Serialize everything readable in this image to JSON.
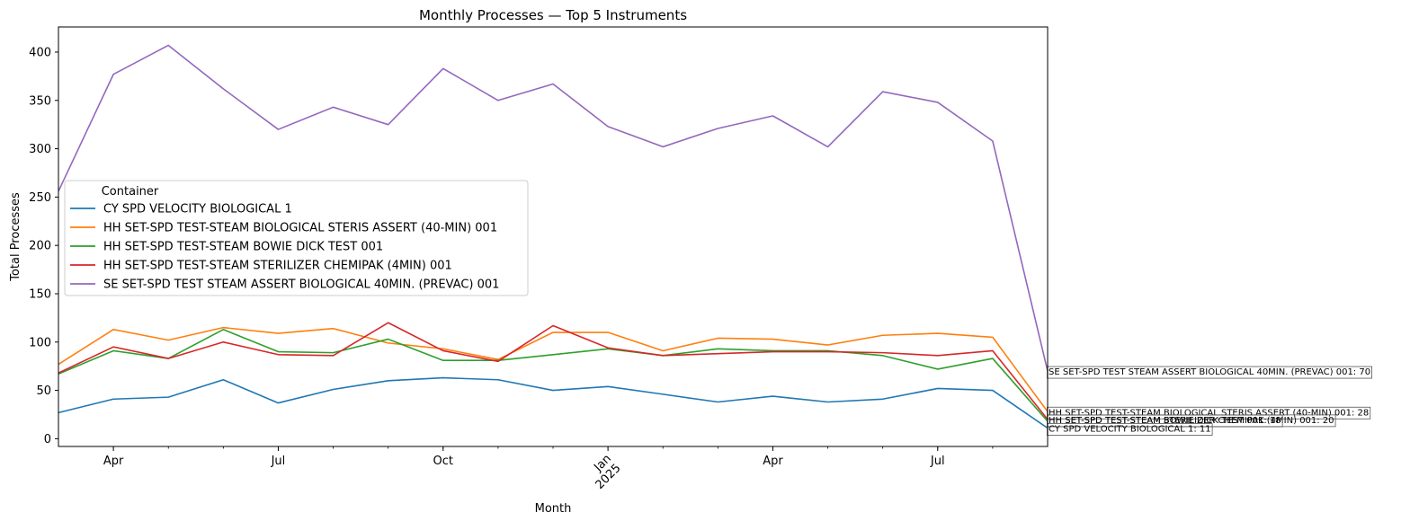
{
  "chart_data": {
    "type": "line",
    "title": "Monthly Processes — Top 5 Instruments",
    "xlabel": "Month",
    "ylabel": "Total Processes",
    "x": [
      "2024-03",
      "2024-04",
      "2024-05",
      "2024-06",
      "2024-07",
      "2024-08",
      "2024-09",
      "2024-10",
      "2024-11",
      "2024-12",
      "2025-01",
      "2025-02",
      "2025-03",
      "2025-04",
      "2025-05",
      "2025-06",
      "2025-07",
      "2025-08",
      "2025-09"
    ],
    "xlim": [
      "2024-03",
      "2025-09"
    ],
    "ylim": [
      -8,
      426
    ],
    "yticks": [
      0,
      50,
      100,
      150,
      200,
      250,
      300,
      350,
      400
    ],
    "xticks": [
      {
        "month": "2024-04",
        "label": "Apr"
      },
      {
        "month": "2024-07",
        "label": "Jul"
      },
      {
        "month": "2024-10",
        "label": "Oct"
      },
      {
        "month": "2025-01",
        "label": "Jan\n2025"
      },
      {
        "month": "2025-04",
        "label": "Apr"
      },
      {
        "month": "2025-07",
        "label": "Jul"
      }
    ],
    "legend": {
      "title": "Container",
      "position": "center-left"
    },
    "grid": false,
    "series": [
      {
        "name": "CY SPD VELOCITY BIOLOGICAL 1",
        "color": "#1f77b4",
        "values": [
          27,
          41,
          43,
          61,
          37,
          51,
          60,
          63,
          61,
          50,
          54,
          46,
          38,
          44,
          38,
          41,
          52,
          50,
          11
        ]
      },
      {
        "name": "HH SET-SPD TEST-STEAM BIOLOGICAL STERIS ASSERT (40-MIN) 001",
        "color": "#ff7f0e",
        "values": [
          77,
          113,
          102,
          115,
          109,
          114,
          99,
          93,
          82,
          110,
          110,
          91,
          104,
          103,
          97,
          107,
          109,
          105,
          28
        ]
      },
      {
        "name": "HH SET-SPD TEST-STEAM BOWIE DICK TEST 001",
        "color": "#2ca02c",
        "values": [
          67,
          91,
          83,
          113,
          90,
          89,
          103,
          81,
          81,
          87,
          93,
          86,
          93,
          91,
          91,
          86,
          72,
          83,
          18
        ]
      },
      {
        "name": "HH SET-SPD TEST-STEAM STERILIZER CHEMIPAK (4MIN) 001",
        "color": "#d62728",
        "values": [
          68,
          95,
          83,
          100,
          87,
          86,
          120,
          91,
          80,
          117,
          94,
          86,
          88,
          90,
          90,
          89,
          86,
          91,
          20
        ]
      },
      {
        "name": "SE SET-SPD TEST STEAM ASSERT BIOLOGICAL 40MIN. (PREVAC) 001",
        "color": "#9467bd",
        "values": [
          256,
          377,
          407,
          362,
          320,
          343,
          325,
          383,
          350,
          367,
          323,
          302,
          321,
          334,
          302,
          359,
          348,
          308,
          70
        ]
      }
    ],
    "annotations": [
      {
        "text": "SE SET-SPD TEST STEAM ASSERT BIOLOGICAL 40MIN. (PREVAC) 001: 70",
        "series": 4
      },
      {
        "text": "HH SET-SPD TEST-STEAM BIOLOGICAL STERIS ASSERT (40-MIN) 001: 28",
        "series": 1
      },
      {
        "text": "HH SET-SPD TEST-STEAM STERILIZER CHEMIPAK (4MIN) 001: 20",
        "series": 3
      },
      {
        "text": "HH SET-SPD TEST-STEAM BOWIE DICK TEST 001: 18",
        "series": 2
      },
      {
        "text": "CY SPD VELOCITY BIOLOGICAL 1: 11",
        "series": 0
      }
    ]
  }
}
